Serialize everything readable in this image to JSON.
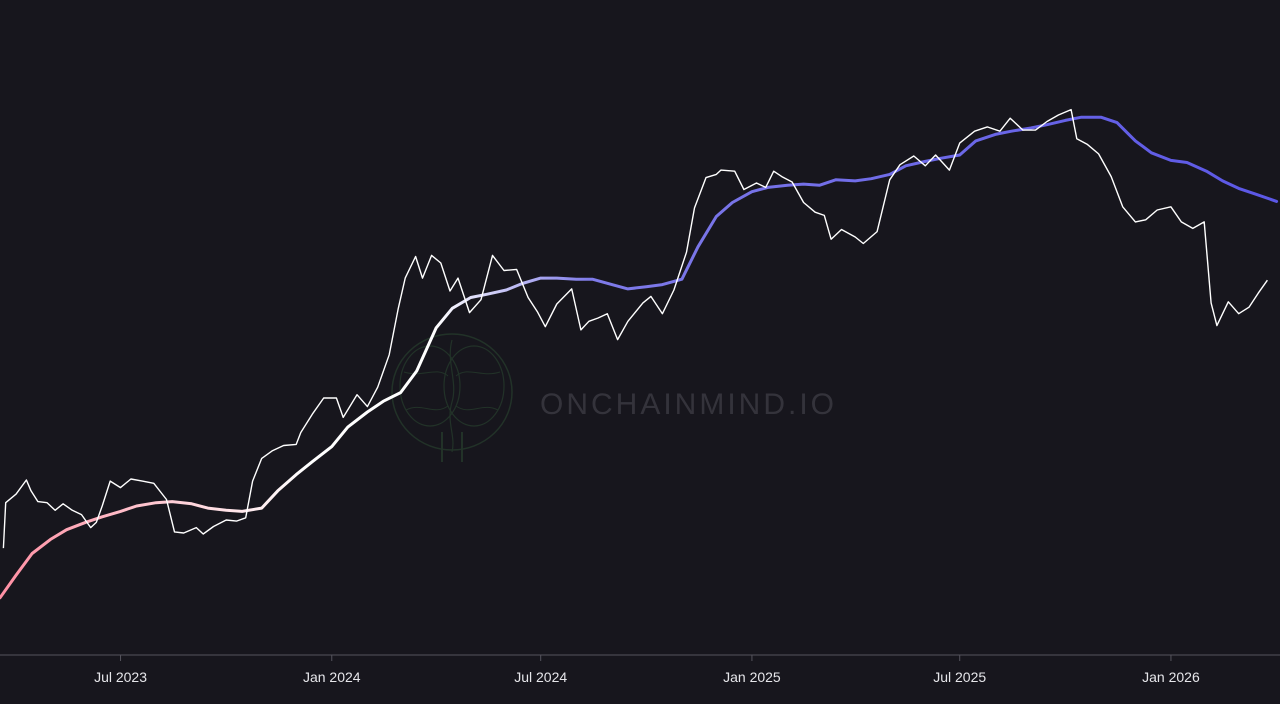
{
  "watermark": {
    "text": "ONCHAINMIND.IO",
    "icon": "brain-icon"
  },
  "colors": {
    "background": "#17161d",
    "axis": "#55545d",
    "price": "#ffffff",
    "ma_start": "#ff8fa3",
    "ma_mid": "#ffffff",
    "ma_end": "#5b57e6"
  },
  "chart_data": {
    "type": "line",
    "title": "",
    "xlabel": "",
    "ylabel": "",
    "grid": false,
    "legend": "none",
    "x_range": [
      "2023-03-18",
      "2026-04-06"
    ],
    "y_range": [
      0,
      1
    ],
    "x_ticks": [
      {
        "date": "2023-07-01",
        "label": "Jul 2023"
      },
      {
        "date": "2024-01-01",
        "label": "Jan 2024"
      },
      {
        "date": "2024-07-01",
        "label": "Jul 2024"
      },
      {
        "date": "2025-01-01",
        "label": "Jan 2025"
      },
      {
        "date": "2025-07-01",
        "label": "Jul 2025"
      },
      {
        "date": "2026-01-01",
        "label": "Jan 2026"
      }
    ],
    "series": [
      {
        "role": "price",
        "x": [
          "2023-03-21",
          "2023-03-23",
          "2023-04-01",
          "2023-04-10",
          "2023-04-14",
          "2023-04-20",
          "2023-04-28",
          "2023-05-05",
          "2023-05-12",
          "2023-05-20",
          "2023-05-28",
          "2023-06-05",
          "2023-06-10",
          "2023-06-15",
          "2023-06-22",
          "2023-07-01",
          "2023-07-10",
          "2023-07-20",
          "2023-07-30",
          "2023-08-10",
          "2023-08-17",
          "2023-08-25",
          "2023-09-05",
          "2023-09-11",
          "2023-09-20",
          "2023-10-01",
          "2023-10-10",
          "2023-10-18",
          "2023-10-24",
          "2023-11-01",
          "2023-11-10",
          "2023-11-20",
          "2023-12-01",
          "2023-12-05",
          "2023-12-15",
          "2023-12-25",
          "2024-01-05",
          "2024-01-11",
          "2024-01-23",
          "2024-02-01",
          "2024-02-10",
          "2024-02-20",
          "2024-02-28",
          "2024-03-05",
          "2024-03-14",
          "2024-03-20",
          "2024-03-28",
          "2024-04-05",
          "2024-04-13",
          "2024-04-20",
          "2024-04-30",
          "2024-05-10",
          "2024-05-20",
          "2024-05-30",
          "2024-06-10",
          "2024-06-20",
          "2024-06-28",
          "2024-07-05",
          "2024-07-15",
          "2024-07-28",
          "2024-08-05",
          "2024-08-12",
          "2024-08-20",
          "2024-08-28",
          "2024-09-06",
          "2024-09-15",
          "2024-09-28",
          "2024-10-05",
          "2024-10-15",
          "2024-10-25",
          "2024-11-05",
          "2024-11-12",
          "2024-11-22",
          "2024-12-01",
          "2024-12-05",
          "2024-12-17",
          "2024-12-25",
          "2025-01-05",
          "2025-01-13",
          "2025-01-20",
          "2025-01-27",
          "2025-02-05",
          "2025-02-15",
          "2025-02-25",
          "2025-03-05",
          "2025-03-11",
          "2025-03-20",
          "2025-04-01",
          "2025-04-08",
          "2025-04-20",
          "2025-05-01",
          "2025-05-10",
          "2025-05-22",
          "2025-06-01",
          "2025-06-10",
          "2025-06-22",
          "2025-07-01",
          "2025-07-14",
          "2025-07-25",
          "2025-08-05",
          "2025-08-14",
          "2025-08-25",
          "2025-09-05",
          "2025-09-15",
          "2025-09-25",
          "2025-10-06",
          "2025-10-11",
          "2025-10-20",
          "2025-10-30",
          "2025-11-10",
          "2025-11-20",
          "2025-12-01",
          "2025-12-10",
          "2025-12-20",
          "2026-01-01",
          "2026-01-10",
          "2026-01-20",
          "2026-01-30",
          "2026-02-05",
          "2026-02-10",
          "2026-02-20",
          "2026-03-01",
          "2026-03-10",
          "2026-03-18",
          "2026-03-26"
        ],
        "y": [
          0.148,
          0.232,
          0.248,
          0.274,
          0.254,
          0.234,
          0.232,
          0.218,
          0.23,
          0.218,
          0.21,
          0.186,
          0.196,
          0.226,
          0.272,
          0.26,
          0.276,
          0.272,
          0.268,
          0.238,
          0.178,
          0.176,
          0.186,
          0.174,
          0.188,
          0.2,
          0.198,
          0.204,
          0.272,
          0.314,
          0.328,
          0.338,
          0.34,
          0.362,
          0.396,
          0.426,
          0.426,
          0.39,
          0.432,
          0.41,
          0.446,
          0.506,
          0.592,
          0.648,
          0.688,
          0.648,
          0.69,
          0.676,
          0.624,
          0.648,
          0.584,
          0.608,
          0.69,
          0.662,
          0.664,
          0.612,
          0.586,
          0.558,
          0.6,
          0.628,
          0.552,
          0.568,
          0.574,
          0.582,
          0.534,
          0.568,
          0.602,
          0.614,
          0.582,
          0.626,
          0.696,
          0.778,
          0.834,
          0.84,
          0.848,
          0.846,
          0.812,
          0.824,
          0.816,
          0.846,
          0.836,
          0.826,
          0.788,
          0.77,
          0.764,
          0.72,
          0.738,
          0.724,
          0.712,
          0.734,
          0.83,
          0.858,
          0.874,
          0.856,
          0.876,
          0.848,
          0.898,
          0.92,
          0.928,
          0.92,
          0.944,
          0.922,
          0.922,
          0.938,
          0.95,
          0.96,
          0.906,
          0.896,
          0.878,
          0.836,
          0.78,
          0.752,
          0.756,
          0.774,
          0.78,
          0.752,
          0.74,
          0.752,
          0.602,
          0.56,
          0.604,
          0.582,
          0.594,
          0.62,
          0.644
        ]
      },
      {
        "role": "moving-average",
        "x": [
          "2023-03-18",
          "2023-04-01",
          "2023-04-15",
          "2023-05-01",
          "2023-05-15",
          "2023-06-01",
          "2023-06-15",
          "2023-07-01",
          "2023-07-15",
          "2023-08-01",
          "2023-08-15",
          "2023-09-01",
          "2023-09-15",
          "2023-10-01",
          "2023-10-15",
          "2023-11-01",
          "2023-11-15",
          "2023-12-01",
          "2023-12-15",
          "2024-01-01",
          "2024-01-15",
          "2024-02-01",
          "2024-02-15",
          "2024-03-01",
          "2024-03-15",
          "2024-04-01",
          "2024-04-15",
          "2024-05-01",
          "2024-05-15",
          "2024-06-01",
          "2024-06-15",
          "2024-07-01",
          "2024-07-15",
          "2024-08-01",
          "2024-08-15",
          "2024-09-01",
          "2024-09-15",
          "2024-10-01",
          "2024-10-15",
          "2024-11-01",
          "2024-11-15",
          "2024-12-01",
          "2024-12-15",
          "2025-01-01",
          "2025-01-15",
          "2025-02-01",
          "2025-02-15",
          "2025-03-01",
          "2025-03-15",
          "2025-04-01",
          "2025-04-15",
          "2025-05-01",
          "2025-05-15",
          "2025-06-01",
          "2025-06-15",
          "2025-07-01",
          "2025-07-15",
          "2025-08-01",
          "2025-08-15",
          "2025-09-01",
          "2025-09-15",
          "2025-10-01",
          "2025-10-15",
          "2025-11-01",
          "2025-11-15",
          "2025-12-01",
          "2025-12-15",
          "2026-01-01",
          "2026-01-15",
          "2026-02-01",
          "2026-02-15",
          "2026-03-01",
          "2026-03-15",
          "2026-04-03"
        ],
        "y": [
          0.056,
          0.098,
          0.138,
          0.164,
          0.182,
          0.196,
          0.206,
          0.216,
          0.226,
          0.232,
          0.234,
          0.23,
          0.222,
          0.218,
          0.216,
          0.222,
          0.254,
          0.284,
          0.308,
          0.336,
          0.372,
          0.4,
          0.42,
          0.436,
          0.476,
          0.556,
          0.592,
          0.612,
          0.618,
          0.626,
          0.638,
          0.648,
          0.648,
          0.646,
          0.646,
          0.636,
          0.628,
          0.632,
          0.636,
          0.646,
          0.706,
          0.762,
          0.788,
          0.808,
          0.816,
          0.82,
          0.822,
          0.82,
          0.83,
          0.828,
          0.832,
          0.84,
          0.856,
          0.864,
          0.87,
          0.876,
          0.902,
          0.914,
          0.92,
          0.926,
          0.932,
          0.94,
          0.946,
          0.946,
          0.936,
          0.902,
          0.88,
          0.866,
          0.862,
          0.846,
          0.828,
          0.814,
          0.804,
          0.79
        ]
      }
    ]
  }
}
